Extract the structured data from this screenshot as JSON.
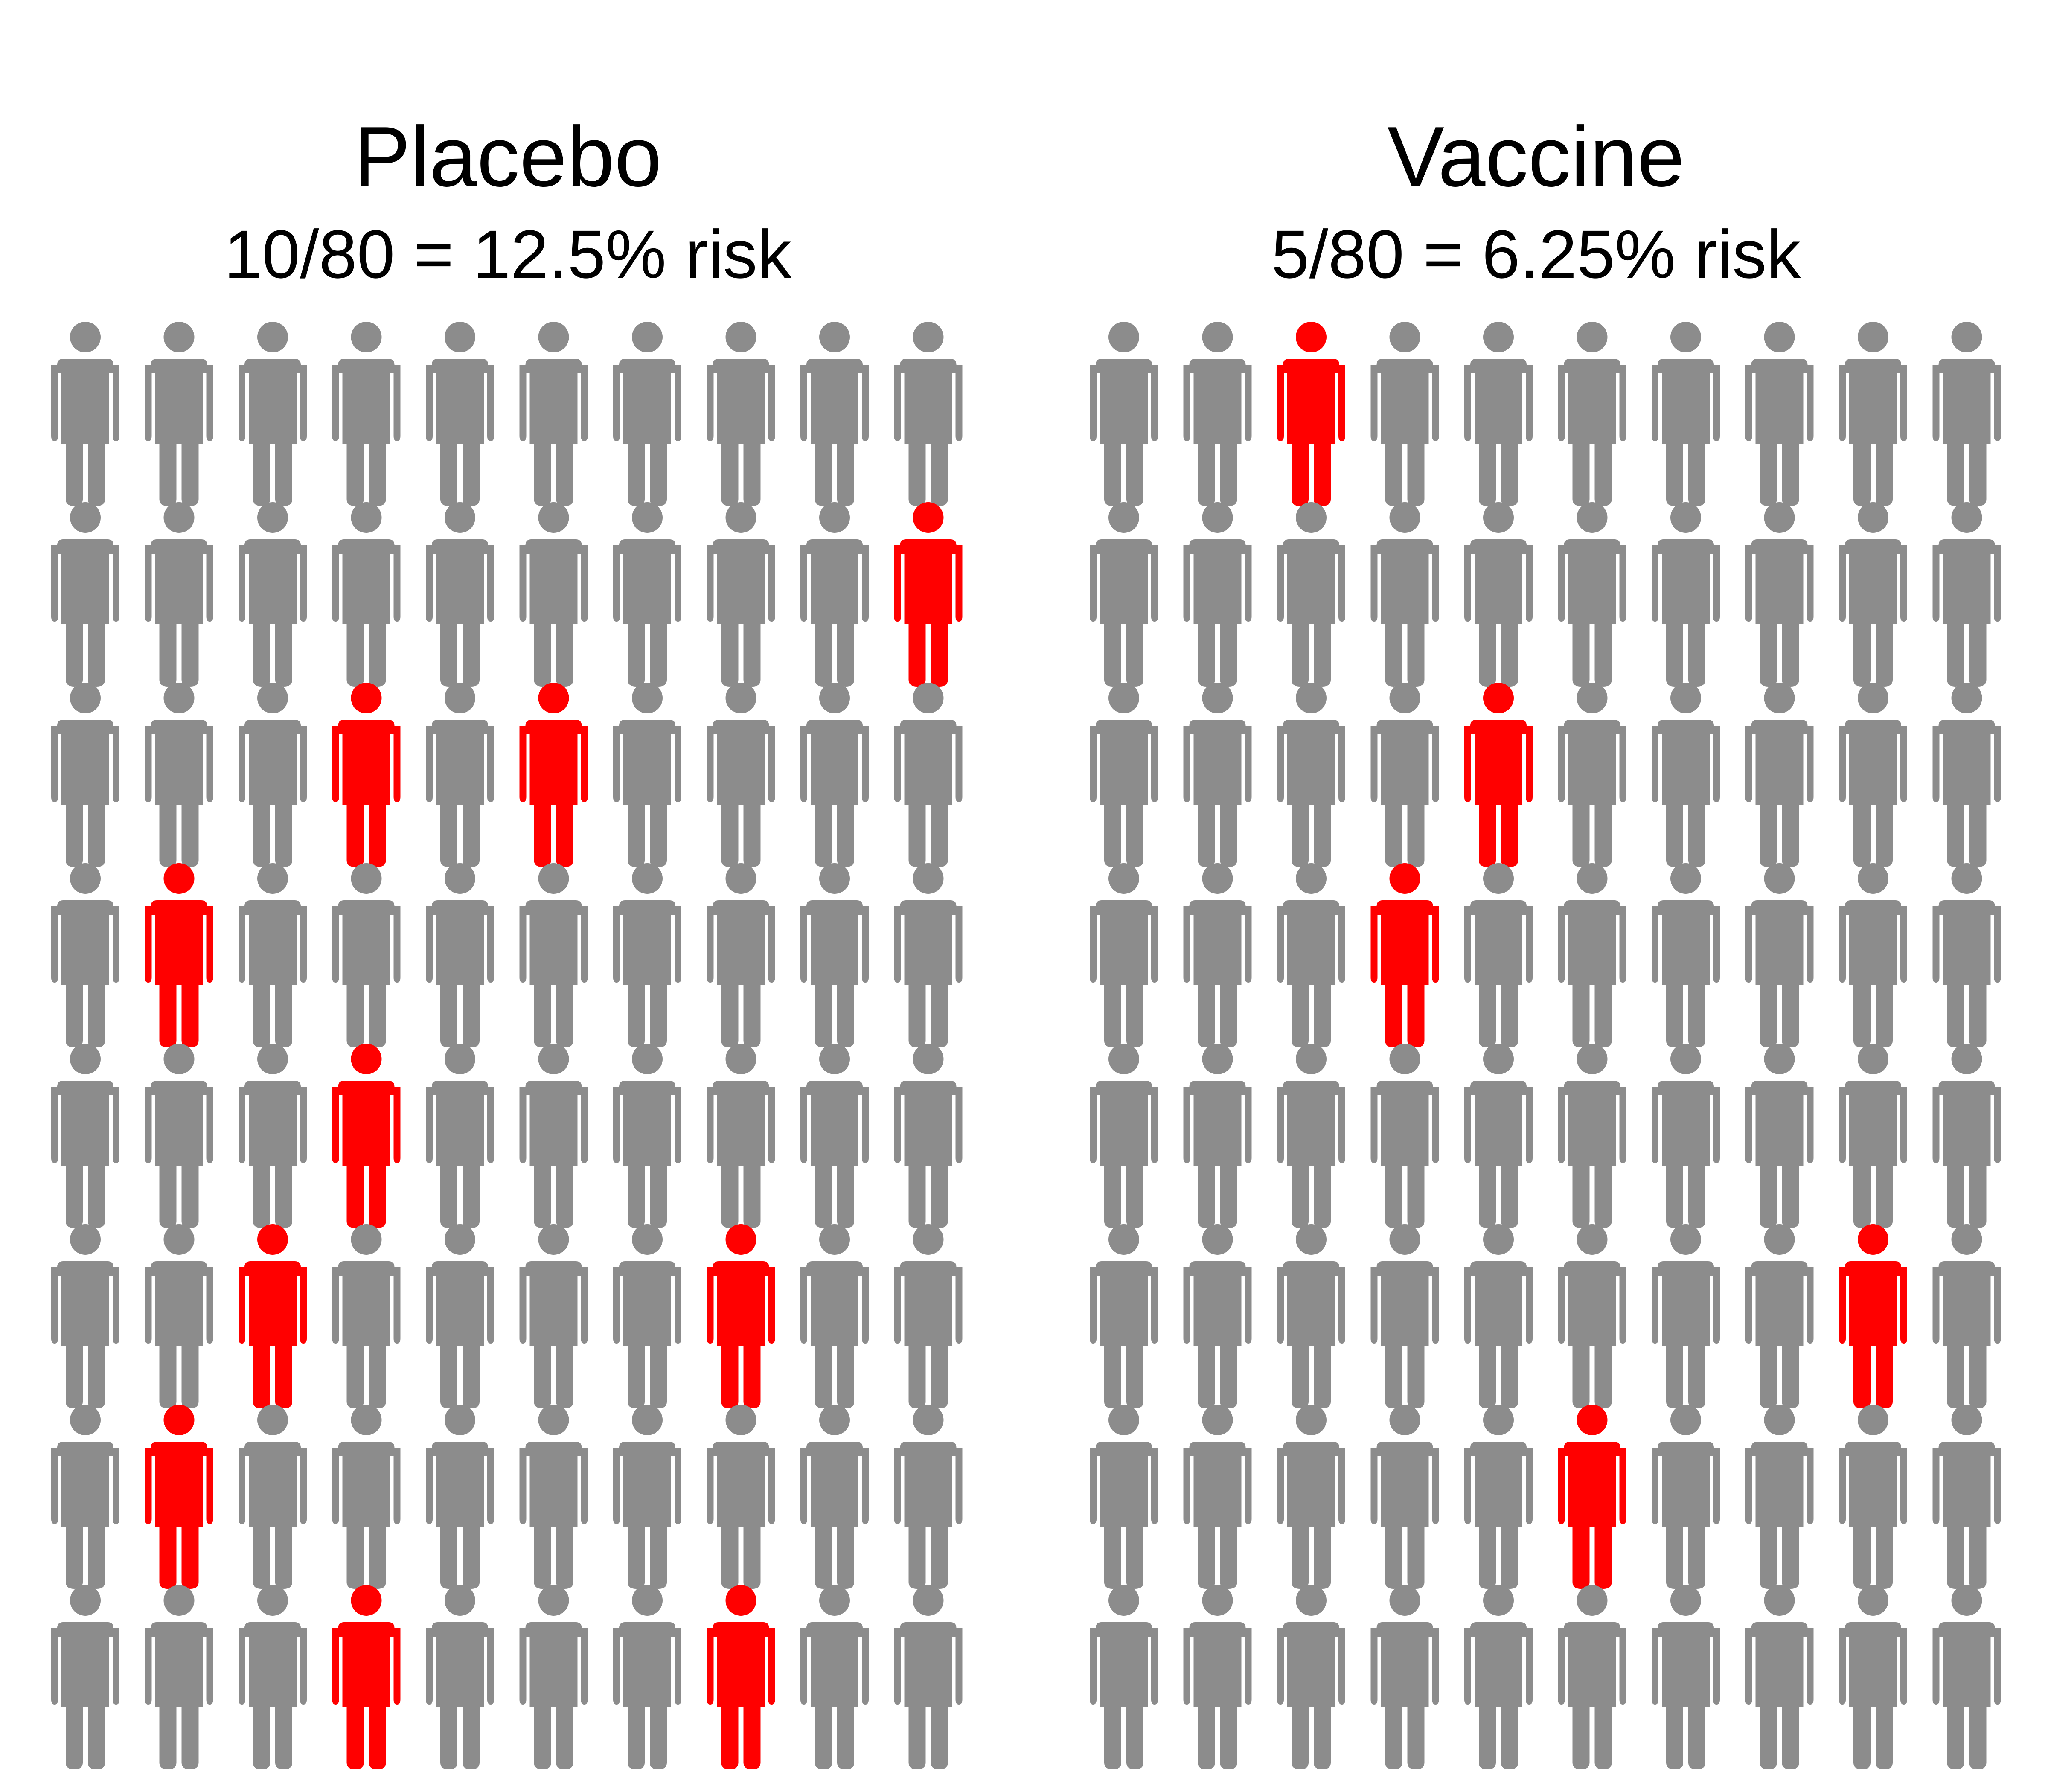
{
  "colors": {
    "background": "#ffffff",
    "neutral_person": "#8c8c8c",
    "neutral_person_alt": "#7f7f7f",
    "infected_person": "#ff0000",
    "text": "#000000"
  },
  "icon": "person-icon",
  "panels": [
    {
      "id": "placebo",
      "title": "Placebo",
      "subtitle": "10/80 = 12.5% risk",
      "rows": 8,
      "cols": 10,
      "total": 80,
      "cases": 10,
      "highlighted": [
        [
          1,
          9
        ],
        [
          2,
          3
        ],
        [
          2,
          5
        ],
        [
          3,
          1
        ],
        [
          4,
          3
        ],
        [
          5,
          2
        ],
        [
          5,
          7
        ],
        [
          6,
          1
        ],
        [
          7,
          3
        ],
        [
          7,
          7
        ]
      ]
    },
    {
      "id": "vaccine",
      "title": "Vaccine",
      "subtitle": "5/80 = 6.25% risk",
      "rows": 8,
      "cols": 10,
      "total": 80,
      "cases": 5,
      "highlighted": [
        [
          0,
          2
        ],
        [
          2,
          4
        ],
        [
          3,
          3
        ],
        [
          5,
          8
        ],
        [
          6,
          5
        ]
      ]
    }
  ]
}
